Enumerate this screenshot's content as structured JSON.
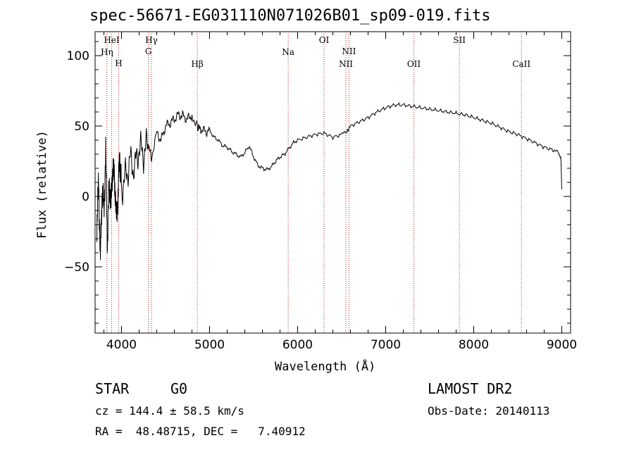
{
  "chart_data": {
    "type": "line",
    "title": "spec-56671-EG031110N071026B01_sp09-019.fits",
    "xlabel": "Wavelength (Å)",
    "ylabel": "Flux (relative)",
    "xlim": [
      3700,
      9100
    ],
    "ylim": [
      -97,
      117
    ],
    "xticks": [
      4000,
      5000,
      6000,
      7000,
      8000,
      9000
    ],
    "yticks": [
      -50,
      0,
      50,
      100
    ],
    "grid": false,
    "series": [
      {
        "color": "#000000",
        "x": [
          3720,
          3740,
          3760,
          3780,
          3800,
          3820,
          3840,
          3860,
          3880,
          3900,
          3920,
          3940,
          3960,
          3980,
          4000,
          4050,
          4100,
          4150,
          4200,
          4250,
          4300,
          4340,
          4400,
          4450,
          4500,
          4550,
          4600,
          4650,
          4700,
          4750,
          4800,
          4860,
          4900,
          4950,
          5000,
          5050,
          5100,
          5150,
          5200,
          5250,
          5300,
          5350,
          5400,
          5450,
          5500,
          5550,
          5600,
          5650,
          5700,
          5750,
          5800,
          5850,
          5900,
          5950,
          6000,
          6100,
          6200,
          6300,
          6400,
          6500,
          6560,
          6600,
          6700,
          6800,
          6900,
          7000,
          7100,
          7200,
          7300,
          7400,
          7500,
          7600,
          7700,
          7800,
          7900,
          8000,
          8100,
          8200,
          8300,
          8400,
          8500,
          8600,
          8700,
          8800,
          8900,
          8960,
          8990,
          9000
        ],
        "y": [
          -20,
          10,
          -45,
          5,
          -10,
          30,
          -35,
          10,
          -5,
          20,
          15,
          -15,
          0,
          30,
          5,
          15,
          25,
          20,
          35,
          30,
          38,
          28,
          45,
          40,
          50,
          52,
          55,
          58,
          57,
          55,
          58,
          50,
          48,
          46,
          47,
          42,
          40,
          36,
          35,
          32,
          30,
          28,
          31,
          36,
          28,
          22,
          20,
          19,
          21,
          25,
          28,
          30,
          34,
          38,
          40,
          42,
          44,
          45,
          42,
          44,
          46,
          50,
          53,
          56,
          60,
          63,
          65,
          65,
          64,
          63,
          62,
          61,
          60,
          59,
          58,
          56,
          54,
          52,
          49,
          46,
          44,
          41,
          38,
          35,
          33,
          31,
          27,
          5
        ]
      }
    ],
    "line_labels": [
      {
        "label": "HeI",
        "x": 3888
      },
      {
        "label": "Hη",
        "x": 3835
      },
      {
        "label": "H",
        "x": 3968
      },
      {
        "label": "Hγ",
        "x": 4340
      },
      {
        "label": "G",
        "x": 4305
      },
      {
        "label": "Hβ",
        "x": 4861
      },
      {
        "label": "Na",
        "x": 5893
      },
      {
        "label": "OI",
        "x": 6300
      },
      {
        "label": "NII",
        "x": 6583
      },
      {
        "label": "NII",
        "x": 6548
      },
      {
        "label": "OII",
        "x": 7320
      },
      {
        "label": "SII",
        "x": 7837
      },
      {
        "label": "CaII",
        "x": 8542
      }
    ]
  },
  "info": {
    "class_label": "STAR",
    "subclass": "G0",
    "cz_line": "cz = 144.4 ± 58.5 km/s",
    "radec_line": "RA =  48.48715, DEC =   7.40912",
    "survey": "LAMOST DR2",
    "obs_date": "Obs-Date: 20140113"
  }
}
